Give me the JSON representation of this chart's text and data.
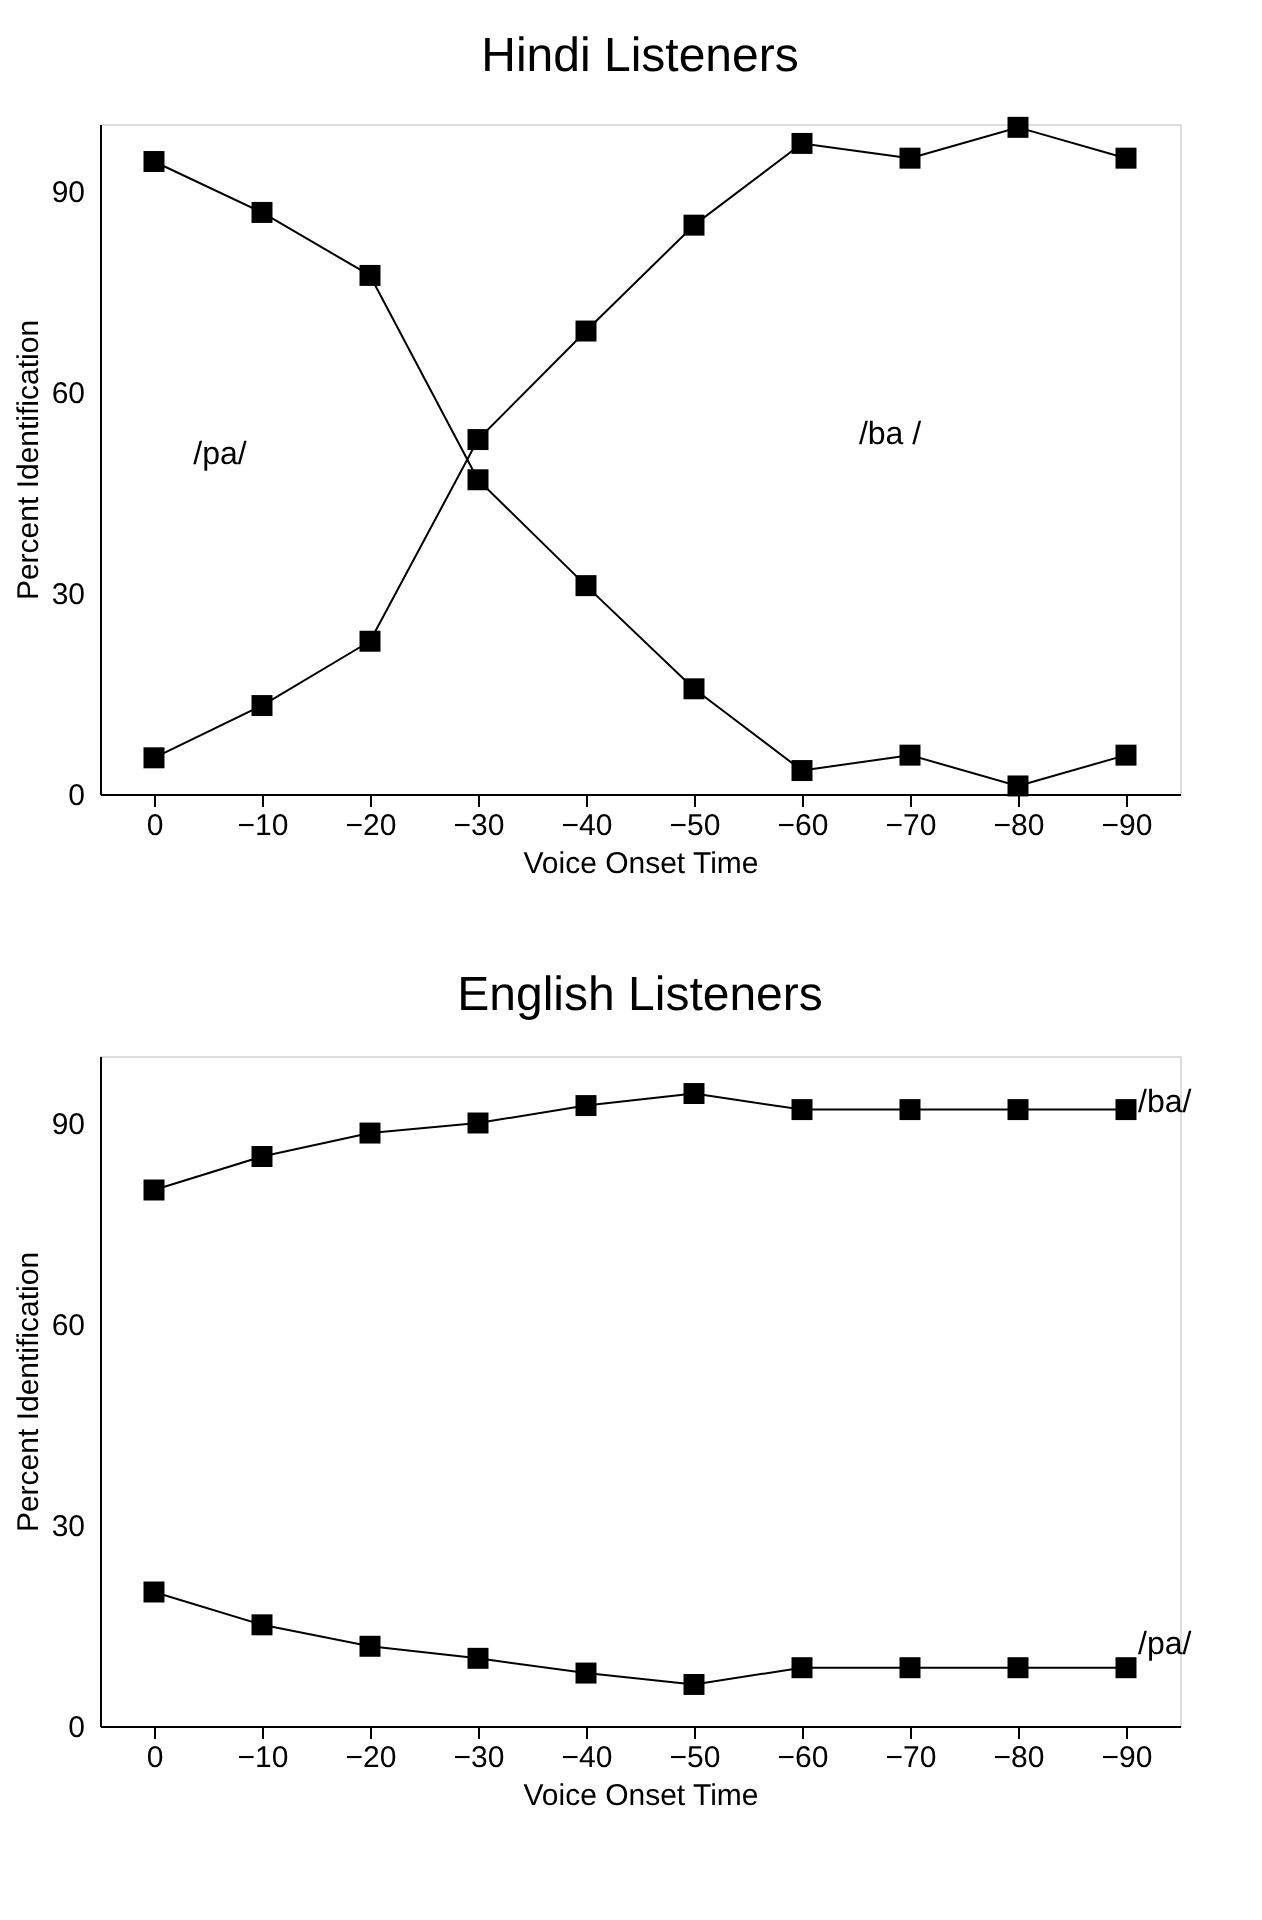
{
  "chart_data": [
    {
      "type": "line",
      "title": "Hindi Listeners",
      "xlabel": "Voice Onset Time",
      "ylabel": "Percent Identification",
      "x": [
        0,
        -10,
        -20,
        -30,
        -40,
        -50,
        -60,
        -70,
        -80,
        -90
      ],
      "series": [
        {
          "color": "#000000",
          "values": [
            94.4,
            86.8,
            77.4,
            46.9,
            31.1,
            15.7,
            3.5,
            5.8,
            1.2,
            5.8
          ]
        },
        {
          "color": "#000000",
          "values": [
            5.4,
            13.2,
            22.8,
            52.9,
            69.1,
            84.9,
            97.1,
            94.9,
            99.5,
            94.9
          ]
        }
      ],
      "annotations": [
        "/pa/",
        "/ba /"
      ],
      "xlim": [
        5,
        -95
      ],
      "xticks": [
        0,
        -10,
        -20,
        -30,
        -40,
        -50,
        -60,
        -70,
        -80,
        -90
      ],
      "ylim": [
        0,
        100
      ],
      "yticks": [
        0,
        30,
        60,
        90
      ],
      "grid": false,
      "legend": false,
      "marker": "square",
      "line_style": "solid"
    },
    {
      "type": "line",
      "title": "English Listeners",
      "xlabel": "Voice Onset Time",
      "ylabel": "Percent Identification",
      "x": [
        0,
        -10,
        -20,
        -30,
        -40,
        -50,
        -60,
        -70,
        -80,
        -90
      ],
      "series": [
        {
          "name": "/ba/",
          "color": "#000000",
          "values": [
            80,
            85,
            88.5,
            90,
            92.6,
            94.4,
            92,
            92,
            92,
            92
          ]
        },
        {
          "name": "/pa/",
          "color": "#000000",
          "values": [
            20,
            15.1,
            11.9,
            10.1,
            7.9,
            6.2,
            8.7,
            8.7,
            8.7,
            8.7
          ]
        }
      ],
      "xlim": [
        5,
        -95
      ],
      "xticks": [
        0,
        -10,
        -20,
        -30,
        -40,
        -50,
        -60,
        -70,
        -80,
        -90
      ],
      "ylim": [
        0,
        100
      ],
      "yticks": [
        0,
        30,
        60,
        90
      ],
      "grid": false,
      "legend": false,
      "marker": "square",
      "line_style": "solid"
    }
  ]
}
